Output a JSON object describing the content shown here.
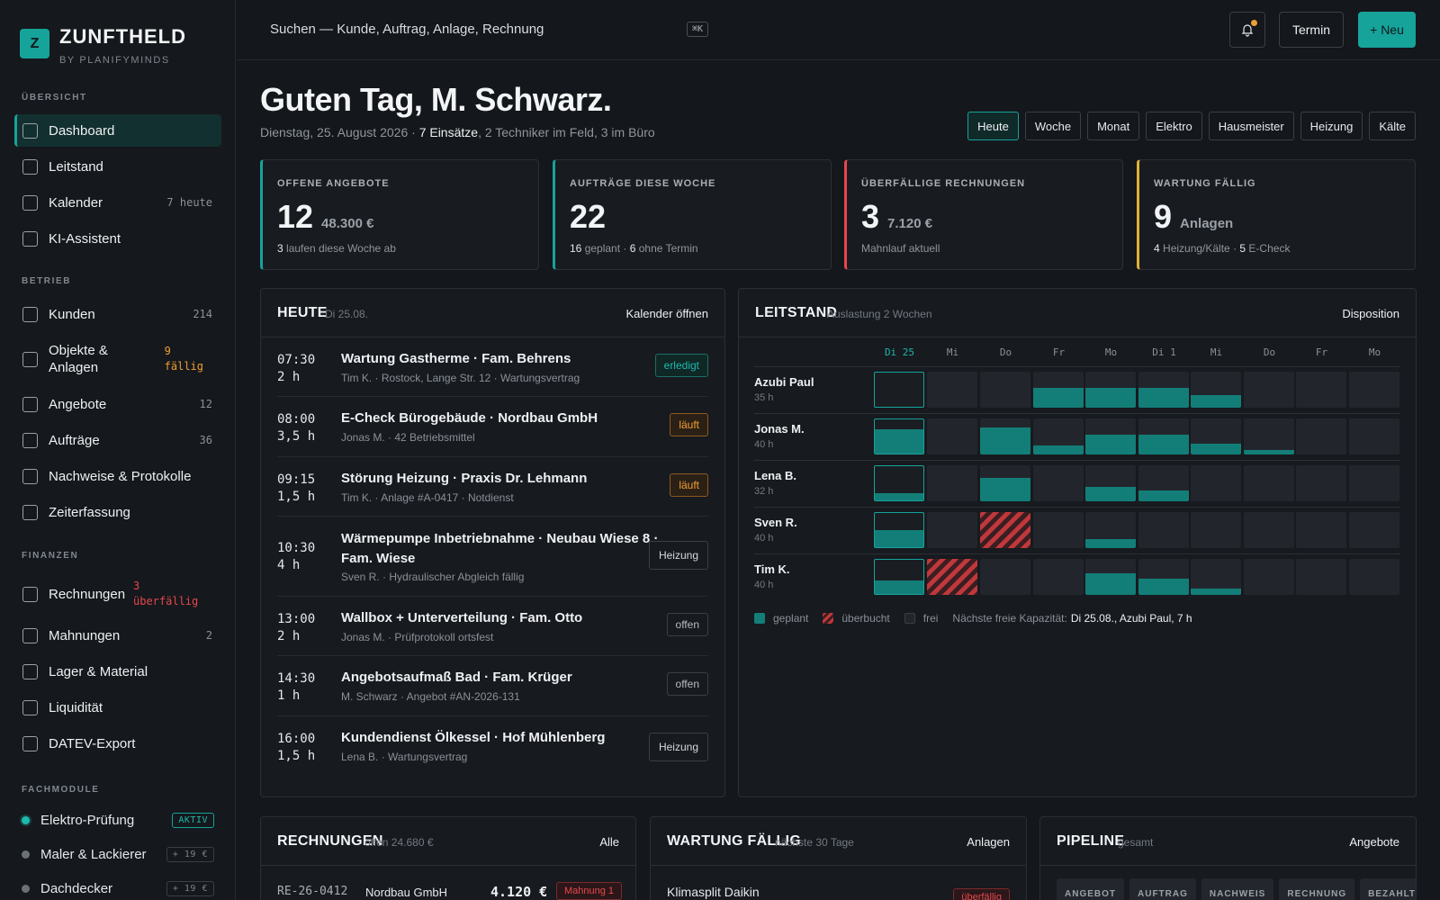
{
  "brand": {
    "logo_letter": "Z",
    "name": "ZUNFTHELD",
    "sub": "BY PLANIFYMINDS"
  },
  "sidebar": {
    "sections": [
      "ÜBERSICHT",
      "BETRIEB",
      "FINANZEN",
      "FACHMODULE"
    ],
    "overview": [
      {
        "label": "Dashboard",
        "count": ""
      },
      {
        "label": "Leitstand",
        "count": ""
      },
      {
        "label": "Kalender",
        "count": "7 heute"
      },
      {
        "label": "KI-Assistent",
        "count": ""
      }
    ],
    "betrieb": [
      {
        "label": "Kunden",
        "count": "214"
      },
      {
        "label": "Objekte &",
        "label2": "Anlagen",
        "count": "9",
        "count2": "fällig"
      },
      {
        "label": "Angebote",
        "count": "12"
      },
      {
        "label": "Aufträge",
        "count": "36"
      },
      {
        "label": "Nachweise & Protokolle",
        "count": ""
      },
      {
        "label": "Zeiterfassung",
        "count": ""
      }
    ],
    "finanzen": [
      {
        "label": "Rechnungen",
        "count": "3",
        "count2": "überfällig"
      },
      {
        "label": "Mahnungen",
        "count": "2"
      },
      {
        "label": "Lager & Material",
        "count": ""
      },
      {
        "label": "Liquidität",
        "count": ""
      },
      {
        "label": "DATEV-Export",
        "count": ""
      }
    ],
    "modules": [
      {
        "label": "Elektro-Prüfung",
        "badge": "AKTIV"
      },
      {
        "label": "Maler & Lackierer",
        "badge": "+ 19 €"
      },
      {
        "label": "Dachdecker",
        "badge": "+ 19 €"
      }
    ]
  },
  "topbar": {
    "search_placeholder": "Suchen — Kunde, Auftrag, Anlage, Rechnung",
    "shortcut": "⌘K",
    "btn_termin": "Termin",
    "btn_new": "+ Neu"
  },
  "header": {
    "greeting": "Guten Tag, M. Schwarz.",
    "date": "Dienstag, 25. August 2026 · ",
    "jobs": "7 Einsätze",
    "rest": ", 2 Techniker im Feld, 3 im Büro",
    "filters": [
      "Heute",
      "Woche",
      "Monat",
      "Elektro",
      "Hausmeister",
      "Heizung",
      "Kälte"
    ]
  },
  "kpis": [
    {
      "title": "OFFENE ANGEBOTE",
      "value": "12",
      "unit": "48.300 €",
      "f1": "3",
      "f2": " laufen diese Woche ab",
      "f3": "",
      "f4": "",
      "color": "#16a39a"
    },
    {
      "title": "AUFTRÄGE DIESE WOCHE",
      "value": "22",
      "unit": "",
      "f1": "16",
      "f2": " geplant · ",
      "f3": "6",
      "f4": " ohne Termin",
      "color": "#16a39a"
    },
    {
      "title": "ÜBERFÄLLIGE RECHNUNGEN",
      "value": "3",
      "unit": "7.120 €",
      "f1": "",
      "f2": "Mahnlauf aktuell",
      "f3": "",
      "f4": "",
      "color": "#e5484d"
    },
    {
      "title": "WARTUNG FÄLLIG",
      "value": "9",
      "unit": "Anlagen",
      "f1": "4",
      "f2": " Heizung/Kälte · ",
      "f3": "5",
      "f4": " E-Check",
      "color": "#e0b23a"
    }
  ],
  "today": {
    "title": "HEUTE",
    "date": "Di 25.08.",
    "link": "Kalender öffnen",
    "appointments": [
      {
        "time": "07:30",
        "dur": "2 h",
        "title": "Wartung Gastherme · Fam. Behrens",
        "title2": "",
        "meta": "Tim K. · Rostock, Lange Str. 12 · Wartungsvertrag",
        "badge": "erledigt",
        "kind": "done"
      },
      {
        "time": "08:00",
        "dur": "3,5 h",
        "title": "E-Check Bürogebäude · Nordbau GmbH",
        "title2": "",
        "meta": "Jonas M. · 42 Betriebsmittel",
        "badge": "läuft",
        "kind": "run"
      },
      {
        "time": "09:15",
        "dur": "1,5 h",
        "title": "Störung Heizung · Praxis Dr. Lehmann",
        "title2": "",
        "meta": "Tim K. · Anlage #A-0417 · Notdienst",
        "badge": "läuft",
        "kind": "run"
      },
      {
        "time": "10:30",
        "dur": "4 h",
        "title": "Wärmepumpe Inbetriebnahme · Neubau Wiese 8 ·",
        "title2": "Fam. Wiese",
        "meta": "Sven R. · Hydraulischer Abgleich fällig",
        "badge": "Heizung",
        "kind": "tag"
      },
      {
        "time": "13:00",
        "dur": "2 h",
        "title": "Wallbox + Unterverteilung · Fam. Otto",
        "title2": "",
        "meta": "Jonas M. · Prüfprotokoll ortsfest",
        "badge": "offen",
        "kind": "open"
      },
      {
        "time": "14:30",
        "dur": "1 h",
        "title": "Angebotsaufmaß Bad · Fam. Krüger",
        "title2": "",
        "meta": "M. Schwarz · Angebot #AN-2026-131",
        "badge": "offen",
        "kind": "open"
      },
      {
        "time": "16:00",
        "dur": "1,5 h",
        "title": "Kundendienst Ölkessel · Hof Mühlenberg",
        "title2": "",
        "meta": "Lena B. · Wartungsvertrag",
        "badge": "Heizung",
        "kind": "tag"
      }
    ]
  },
  "leitstand": {
    "title": "LEITSTAND",
    "sub": "Auslastung 2 Wochen",
    "link": "Disposition",
    "days": [
      "Di 25",
      "Mi",
      "Do",
      "Fr",
      "Mo",
      "Di 1",
      "Mi",
      "Do",
      "Fr",
      "Mo"
    ],
    "techs": [
      {
        "name": "Azubi Paul",
        "hours": "35 h",
        "load": [
          0,
          0,
          0,
          0.55,
          0.55,
          0.55,
          0.35,
          0,
          0,
          0
        ]
      },
      {
        "name": "Jonas M.",
        "hours": "40 h",
        "load": [
          0.7,
          0,
          0.75,
          0.25,
          0.55,
          0.55,
          0.3,
          0.12,
          0,
          0
        ]
      },
      {
        "name": "Lena B.",
        "hours": "32 h",
        "load": [
          0.2,
          0,
          0.65,
          0,
          0.4,
          0.3,
          0,
          0,
          0,
          0
        ]
      },
      {
        "name": "Sven R.",
        "hours": "40 h",
        "load": [
          0.5,
          0,
          -1,
          0,
          0.25,
          0,
          0,
          0,
          0,
          0
        ]
      },
      {
        "name": "Tim K.",
        "hours": "40 h",
        "load": [
          0.4,
          -1,
          0,
          0,
          0.6,
          0.45,
          0.18,
          0,
          0,
          0
        ]
      }
    ],
    "legend": {
      "planned": "geplant",
      "over": "überbucht",
      "free": "frei",
      "next_label": "Nächste freie Kapazität:",
      "next_value": "Di 25.08., Azubi Paul, 7 h"
    },
    "colors": {
      "planned": "#137e78",
      "over": "#c0383c"
    }
  },
  "rechnungen": {
    "title": "RECHNUNGEN",
    "sub": "offen 24.680 €",
    "link": "Alle",
    "first": {
      "id": "RE-26-0412",
      "name": "Nordbau GmbH",
      "amount": "4.120 €",
      "badge": "Mahnung 1"
    }
  },
  "wartung": {
    "title": "WARTUNG FÄLLIG",
    "sub": "nächste 30 Tage",
    "link": "Anlagen",
    "first": {
      "name": "Klimasplit Daikin",
      "badge": "überfällig"
    }
  },
  "pipeline": {
    "title": "PIPELINE",
    "sub": "gesamt",
    "link": "Angebote",
    "stages": [
      "ANGEBOT",
      "AUFTRAG",
      "NACHWEIS",
      "RECHNUNG",
      "BEZAHLT"
    ]
  }
}
